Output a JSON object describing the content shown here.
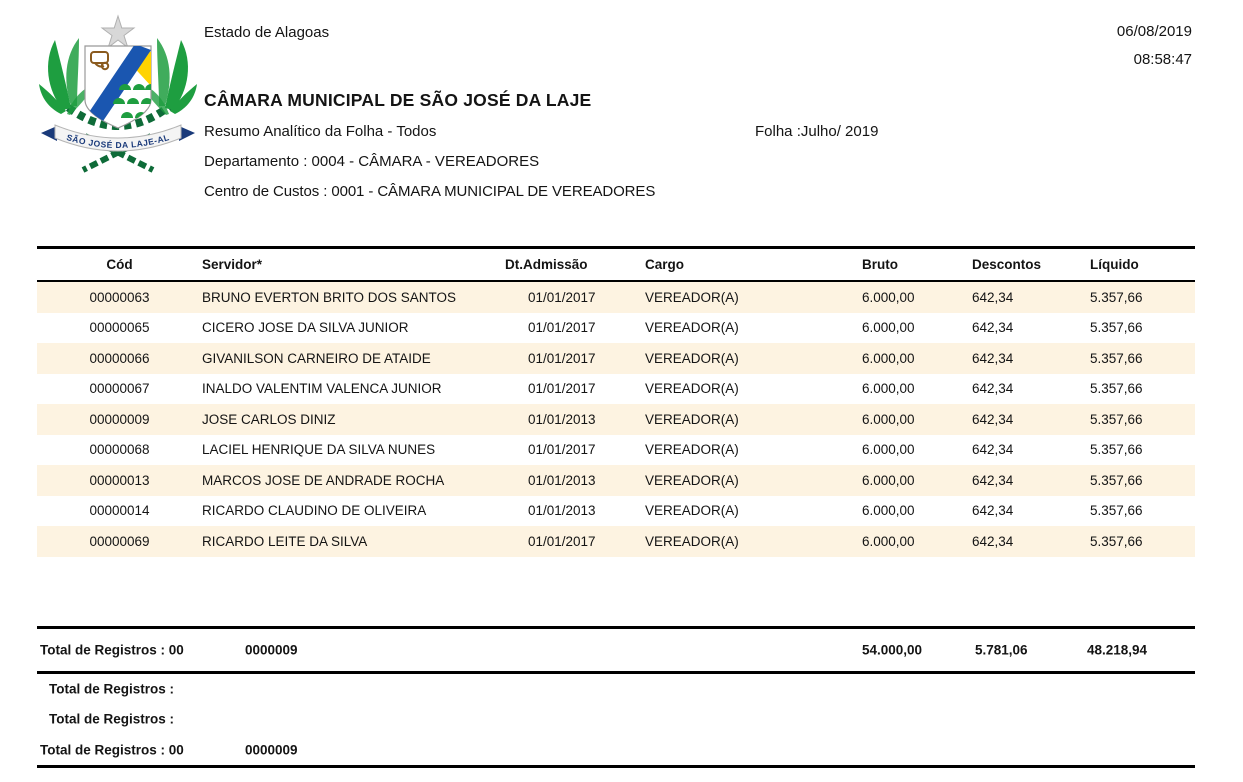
{
  "header": {
    "state": "Estado de Alagoas",
    "date": "06/08/2019",
    "time": "08:58:47",
    "title": "CÂMARA MUNICIPAL DE SÃO JOSÉ DA LAJE",
    "report_name": "Resumo Analítico da Folha - Todos",
    "sheet_label": "Folha :Julho/ 2019",
    "department": "Departamento : 0004 - CÂMARA - VEREADORES",
    "cost_center": "Centro de Custos : 0001 - CÂMARA MUNICIPAL DE VEREADORES"
  },
  "logo": {
    "icon": "municipal-coat-of-arms",
    "banner_text": "SÃO JOSÉ DA LAJE-AL",
    "colors": {
      "green": "#1e9e40",
      "dark_green": "#0e6b38",
      "blue": "#1a56b0",
      "yellow": "#ffd300",
      "silver": "#d8d8d8",
      "brown": "#8a5a1e",
      "navy": "#1a3a7a"
    }
  },
  "table": {
    "stripe_color": "#fdf3e1",
    "columns": [
      "Cód",
      "Servidor*",
      "Dt.Admissão",
      "Cargo",
      "Bruto",
      "Descontos",
      "Líquido"
    ],
    "rows": [
      {
        "cod": "00000063",
        "servidor": "BRUNO EVERTON BRITO DOS SANTOS",
        "admissao": "01/01/2017",
        "cargo": "VEREADOR(A)",
        "bruto": "6.000,00",
        "descontos": "642,34",
        "liquido": "5.357,66"
      },
      {
        "cod": "00000065",
        "servidor": "CICERO JOSE DA SILVA JUNIOR",
        "admissao": "01/01/2017",
        "cargo": "VEREADOR(A)",
        "bruto": "6.000,00",
        "descontos": "642,34",
        "liquido": "5.357,66"
      },
      {
        "cod": "00000066",
        "servidor": "GIVANILSON CARNEIRO DE ATAIDE",
        "admissao": "01/01/2017",
        "cargo": "VEREADOR(A)",
        "bruto": "6.000,00",
        "descontos": "642,34",
        "liquido": "5.357,66"
      },
      {
        "cod": "00000067",
        "servidor": "INALDO VALENTIM VALENCA JUNIOR",
        "admissao": "01/01/2017",
        "cargo": "VEREADOR(A)",
        "bruto": "6.000,00",
        "descontos": "642,34",
        "liquido": "5.357,66"
      },
      {
        "cod": "00000009",
        "servidor": "JOSE CARLOS DINIZ",
        "admissao": "01/01/2013",
        "cargo": "VEREADOR(A)",
        "bruto": "6.000,00",
        "descontos": "642,34",
        "liquido": "5.357,66"
      },
      {
        "cod": "00000068",
        "servidor": "LACIEL HENRIQUE DA SILVA NUNES",
        "admissao": "01/01/2017",
        "cargo": "VEREADOR(A)",
        "bruto": "6.000,00",
        "descontos": "642,34",
        "liquido": "5.357,66"
      },
      {
        "cod": "00000013",
        "servidor": "MARCOS JOSE DE ANDRADE ROCHA",
        "admissao": "01/01/2013",
        "cargo": "VEREADOR(A)",
        "bruto": "6.000,00",
        "descontos": "642,34",
        "liquido": "5.357,66"
      },
      {
        "cod": "00000014",
        "servidor": "RICARDO CLAUDINO DE OLIVEIRA",
        "admissao": "01/01/2013",
        "cargo": "VEREADOR(A)",
        "bruto": "6.000,00",
        "descontos": "642,34",
        "liquido": "5.357,66"
      },
      {
        "cod": "00000069",
        "servidor": "RICARDO LEITE DA SILVA",
        "admissao": "01/01/2017",
        "cargo": "VEREADOR(A)",
        "bruto": "6.000,00",
        "descontos": "642,34",
        "liquido": "5.357,66"
      }
    ]
  },
  "totals": {
    "summary_row": {
      "label": "Total de Registros : 00",
      "count": "0000009",
      "bruto": "54.000,00",
      "descontos": "5.781,06",
      "liquido": "48.218,94"
    },
    "footer_rows": [
      {
        "label": "Total de Registros :",
        "count": ""
      },
      {
        "label": "Total de Registros :",
        "count": ""
      },
      {
        "label": "Total de Registros : 00",
        "count": "0000009"
      }
    ]
  }
}
